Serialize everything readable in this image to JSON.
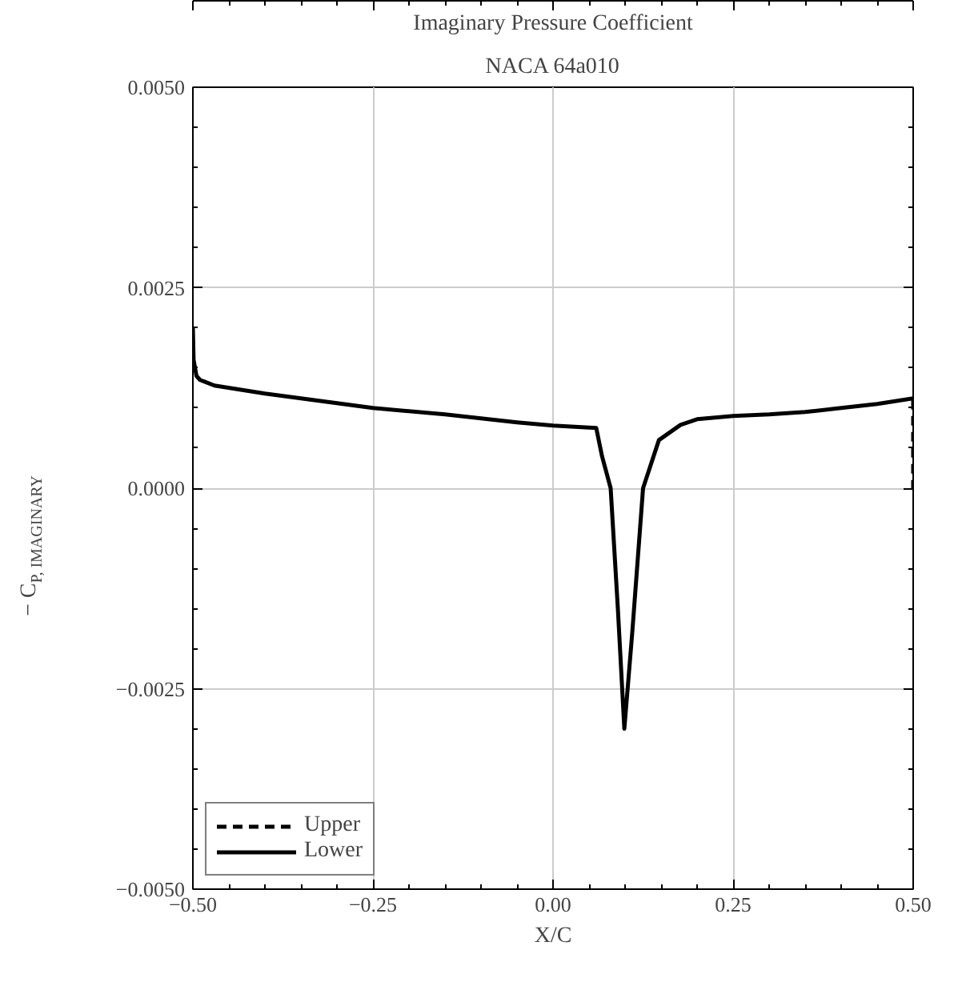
{
  "chart_data": {
    "type": "line",
    "title": "Imaginary Pressure Coefficient",
    "subtitle": "NACA 64a010",
    "xlabel": "X/C",
    "ylabel": "− C$_{P, IMAGINARY}$",
    "xlim": [
      -0.5,
      0.5
    ],
    "xticks": [
      {
        "value": -0.5,
        "label": "−0.50"
      },
      {
        "value": -0.25,
        "label": "−0.25"
      },
      {
        "value": 0,
        "label": "0.00"
      },
      {
        "value": 0.25,
        "label": "0.25"
      },
      {
        "value": 0.5,
        "label": "0.50"
      }
    ],
    "ylim": [
      -0.005,
      0.005
    ],
    "yticks": [
      {
        "value": -0.005,
        "label": "−0.0050"
      },
      {
        "value": -0.0025,
        "label": "−0.0025"
      },
      {
        "value": 0,
        "label": "0.0000"
      },
      {
        "value": 0.0025,
        "label": "0.0025"
      },
      {
        "value": 0.005,
        "label": "0.0050"
      }
    ],
    "grid": true,
    "legend": "bottom left",
    "series": [
      {
        "name": "Upper",
        "color": "#000000",
        "line_style": "dashed",
        "x": [
          0.5,
          0.5,
          0.5
        ],
        "values": [
          0.0011,
          0.0005,
          0.0
        ]
      },
      {
        "name": "Lower",
        "color": "#000000",
        "line_style": "solid",
        "x": [
          -0.5,
          -0.499,
          -0.495,
          -0.49,
          -0.47,
          -0.4,
          -0.3,
          -0.25,
          -0.15,
          -0.05,
          0.0,
          0.04,
          0.06,
          0.068,
          0.08,
          0.09,
          0.099,
          0.11,
          0.125,
          0.147,
          0.177,
          0.2,
          0.25,
          0.3,
          0.35,
          0.4,
          0.45,
          0.5
        ],
        "values": [
          0.002,
          0.0016,
          0.0014,
          0.00135,
          0.00128,
          0.00118,
          0.00106,
          0.001,
          0.00092,
          0.00082,
          0.00078,
          0.00076,
          0.00075,
          0.0004,
          0.0,
          -0.0015,
          -0.003,
          -0.0018,
          0.0,
          0.0006,
          0.00079,
          0.00086,
          0.0009,
          0.00092,
          0.00095,
          0.001,
          0.00105,
          0.00112
        ]
      }
    ]
  }
}
